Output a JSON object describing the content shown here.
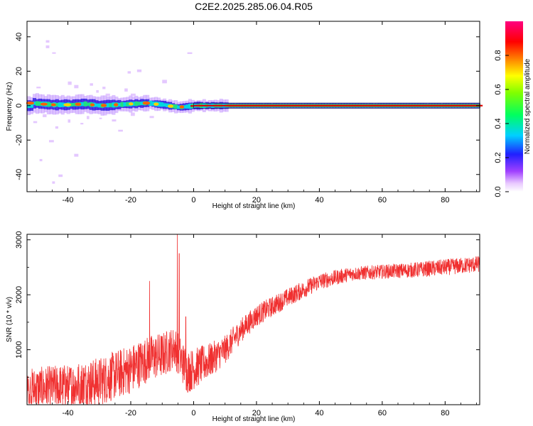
{
  "chart_data": [
    {
      "type": "heatmap",
      "title": "C2E2.2025.285.06.04.R05",
      "xlabel": "Height of straight line (km)",
      "ylabel": "Frequency (Hz)",
      "xlim": [
        -53,
        91
      ],
      "ylim": [
        -50,
        49
      ],
      "xticks": [
        "-40",
        "-20",
        "0",
        "20",
        "40",
        "60",
        "80"
      ],
      "yticks": [
        "40",
        "20",
        "0",
        "-20",
        "-40"
      ],
      "colorbar": {
        "label": "Normalized spectral amplitude",
        "ticks": [
          "0.0",
          "0.2",
          "0.4",
          "0.6",
          "0.8"
        ],
        "range": [
          0,
          1
        ],
        "colormap": "rainbow (purple-blue-cyan-green-yellow-red-magenta)"
      },
      "ridge": {
        "description": "narrow high-amplitude band near 0 Hz across all heights",
        "points": [
          {
            "x": -52,
            "y": 1.5
          },
          {
            "x": -45,
            "y": 0.5
          },
          {
            "x": -40,
            "y": 0.5
          },
          {
            "x": -35,
            "y": 1
          },
          {
            "x": -30,
            "y": 0
          },
          {
            "x": -25,
            "y": 0.5
          },
          {
            "x": -20,
            "y": 1
          },
          {
            "x": -15,
            "y": 1.5
          },
          {
            "x": -10,
            "y": 0.5
          },
          {
            "x": -5,
            "y": -1
          },
          {
            "x": 0,
            "y": 0
          },
          {
            "x": 20,
            "y": 0
          },
          {
            "x": 60,
            "y": 0
          },
          {
            "x": 91,
            "y": 0
          }
        ]
      }
    },
    {
      "type": "line",
      "xlabel": "Height of straight line (km)",
      "ylabel": "SNR (10 * v/v)",
      "xlim": [
        -53,
        91
      ],
      "ylim": [
        0,
        3100
      ],
      "xticks": [
        "-40",
        "-20",
        "0",
        "20",
        "40",
        "60",
        "80"
      ],
      "yticks": [
        "3000",
        "2000",
        "1000"
      ],
      "color": "#f03030",
      "trend": [
        {
          "x": -53,
          "y": 280,
          "noise": 380
        },
        {
          "x": -40,
          "y": 330,
          "noise": 420
        },
        {
          "x": -30,
          "y": 420,
          "noise": 450
        },
        {
          "x": -20,
          "y": 650,
          "noise": 450
        },
        {
          "x": -14,
          "y": 850,
          "noise": 420
        },
        {
          "x": -10,
          "y": 900,
          "noise": 420
        },
        {
          "x": -6,
          "y": 1050,
          "noise": 380
        },
        {
          "x": -2,
          "y": 600,
          "noise": 400
        },
        {
          "x": 0,
          "y": 650,
          "noise": 380
        },
        {
          "x": 5,
          "y": 800,
          "noise": 320
        },
        {
          "x": 10,
          "y": 1000,
          "noise": 260
        },
        {
          "x": 15,
          "y": 1350,
          "noise": 220
        },
        {
          "x": 20,
          "y": 1620,
          "noise": 200
        },
        {
          "x": 30,
          "y": 1950,
          "noise": 170
        },
        {
          "x": 40,
          "y": 2240,
          "noise": 150
        },
        {
          "x": 50,
          "y": 2380,
          "noise": 130
        },
        {
          "x": 60,
          "y": 2420,
          "noise": 130
        },
        {
          "x": 70,
          "y": 2450,
          "noise": 140
        },
        {
          "x": 80,
          "y": 2500,
          "noise": 150
        },
        {
          "x": 91,
          "y": 2560,
          "noise": 150
        }
      ],
      "spikes": [
        {
          "x": -14,
          "y": 2250
        },
        {
          "x": -5.2,
          "y": 3100
        },
        {
          "x": -4.6,
          "y": 2750
        },
        {
          "x": -2.5,
          "y": 1600
        }
      ]
    }
  ]
}
